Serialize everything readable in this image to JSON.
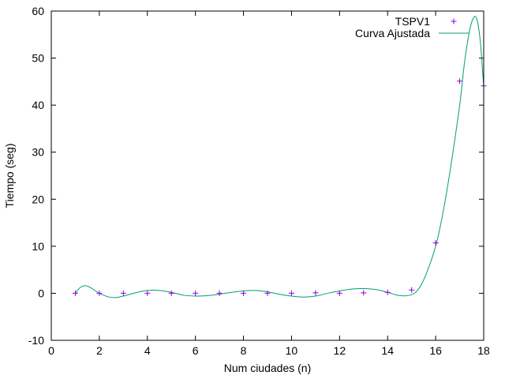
{
  "chart_data": {
    "type": "scatter",
    "xlabel": "Num ciudades (n)",
    "ylabel": "Tiempo (seg)",
    "xlim": [
      0,
      18
    ],
    "ylim": [
      -10,
      60
    ],
    "xticks": [
      0,
      2,
      4,
      6,
      8,
      10,
      12,
      14,
      16,
      18
    ],
    "yticks": [
      -10,
      0,
      10,
      20,
      30,
      40,
      50,
      60
    ],
    "grid": false,
    "legend_position": "top-right",
    "series": [
      {
        "name": "TSPV1",
        "kind": "points",
        "marker": "plus",
        "color": "#9400d3",
        "x": [
          1,
          2,
          3,
          4,
          5,
          6,
          7,
          8,
          9,
          10,
          11,
          12,
          13,
          14,
          15,
          16,
          17,
          18
        ],
        "y": [
          0,
          0,
          0,
          0,
          0,
          0,
          0,
          0,
          0,
          0,
          0.1,
          0,
          0.1,
          0.2,
          0.7,
          10.7,
          45.1,
          44.1
        ]
      },
      {
        "name": "Curva Ajustada",
        "kind": "line",
        "color": "#009e73",
        "x": [
          1,
          1.2,
          1.4,
          1.6,
          2,
          2.4,
          2.7,
          3,
          3.5,
          4,
          4.5,
          5,
          5.5,
          6,
          6.5,
          7,
          7.5,
          8,
          8.5,
          9,
          9.5,
          10,
          10.5,
          11,
          11.5,
          12,
          12.5,
          13,
          13.5,
          14,
          14.5,
          15,
          15.3,
          15.6,
          16,
          16.3,
          16.6,
          17,
          17.2,
          17.4,
          17.55,
          17.7,
          17.85,
          18
        ],
        "y": [
          0,
          1.2,
          1.6,
          1.3,
          0,
          -0.8,
          -0.9,
          -0.6,
          0.1,
          0.6,
          0.6,
          0.2,
          -0.4,
          -0.6,
          -0.5,
          -0.2,
          0.2,
          0.5,
          0.6,
          0.3,
          -0.2,
          -0.6,
          -0.8,
          -0.6,
          0,
          0.5,
          0.9,
          1.0,
          0.8,
          0.2,
          -0.5,
          -0.3,
          1.0,
          4.0,
          10.0,
          17.0,
          26.0,
          40.0,
          49.0,
          55.5,
          58.3,
          58.5,
          54.0,
          44.0
        ]
      }
    ]
  }
}
